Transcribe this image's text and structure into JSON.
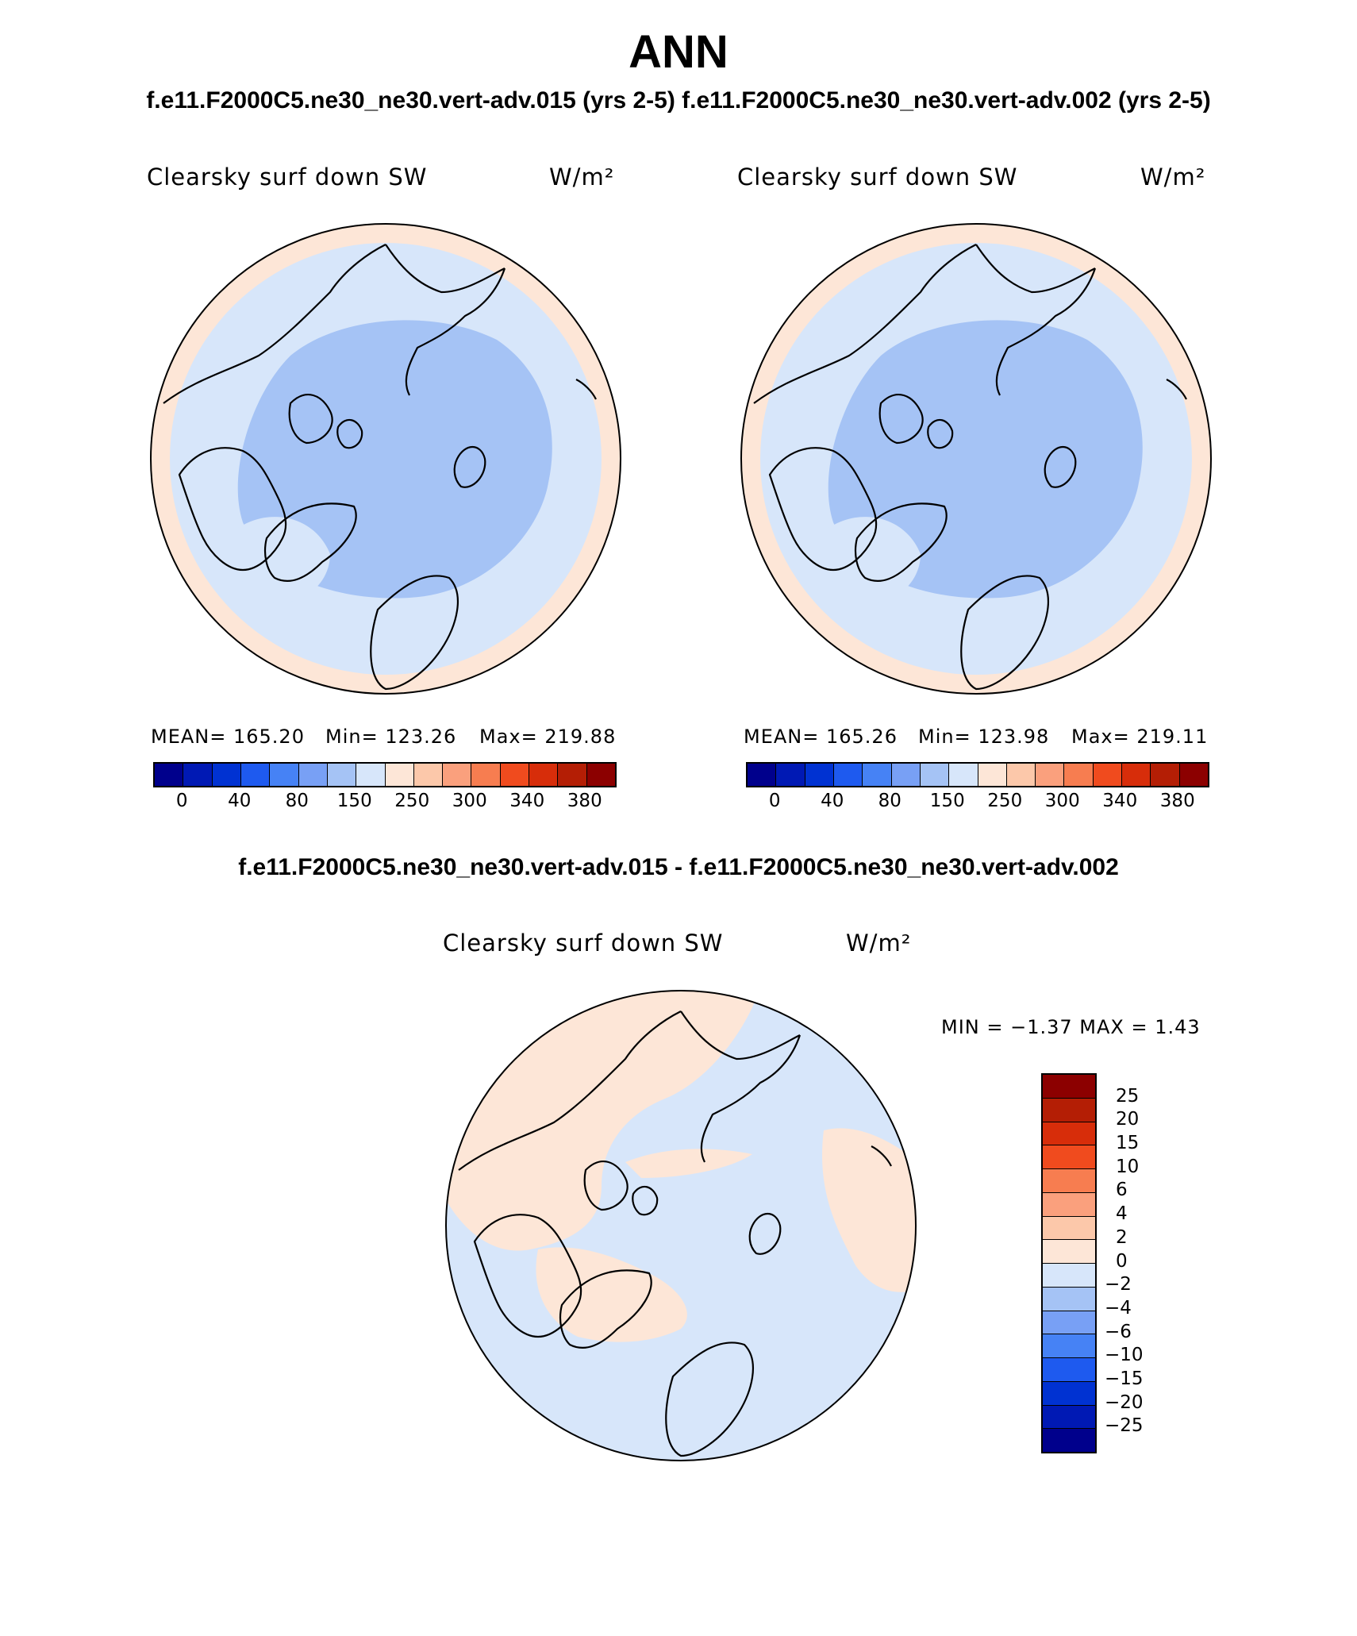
{
  "title": "ANN",
  "case_header": "f.e11.F2000C5.ne30_ne30.vert-adv.015 (yrs 2-5) f.e11.F2000C5.ne30_ne30.vert-adv.002 (yrs 2-5)",
  "diff_header": "f.e11.F2000C5.ne30_ne30.vert-adv.015 - f.e11.F2000C5.ne30_ne30.vert-adv.002",
  "panels": [
    {
      "variable": "Clearsky surf down SW",
      "units": "W/m²",
      "mean_text": "MEAN= 165.20",
      "min_text": "Min= 123.26",
      "max_text": "Max= 219.88"
    },
    {
      "variable": "Clearsky surf down SW",
      "units": "W/m²",
      "mean_text": "MEAN= 165.26",
      "min_text": "Min= 123.98",
      "max_text": "Max= 219.11"
    }
  ],
  "diff_panel": {
    "variable": "Clearsky surf down SW",
    "units": "W/m²",
    "minmax_text": "MIN =   −1.37 MAX =    1.43"
  },
  "colorbar": {
    "colors": [
      "#00008c",
      "#0019b4",
      "#0032d2",
      "#1e5aef",
      "#4682f5",
      "#78a0f5",
      "#a5c3f5",
      "#d7e6fa",
      "#fde6d7",
      "#fcc8aa",
      "#faa07d",
      "#f77d50",
      "#f04b1e",
      "#d72d0a",
      "#b41e05",
      "#8c0000"
    ],
    "labels": [
      "0",
      "40",
      "80",
      "150",
      "250",
      "300",
      "340",
      "380"
    ]
  },
  "diff_colorbar": {
    "colors": [
      "#8c0000",
      "#b41e05",
      "#d72d0a",
      "#f04b1e",
      "#f77d50",
      "#faa07d",
      "#fcc8aa",
      "#fde6d7",
      "#d7e6fa",
      "#a5c3f5",
      "#78a0f5",
      "#4682f5",
      "#1e5aef",
      "#0032d2",
      "#0019b4",
      "#00008c"
    ],
    "labels": [
      "25",
      "20",
      "15",
      "10",
      "6",
      "4",
      "2",
      "0",
      "−2",
      "−4",
      "−6",
      "−10",
      "−15",
      "−20",
      "−25"
    ]
  },
  "map_colors": {
    "outer": "#fde6d7",
    "mid": "#d7e6fa",
    "inner": "#a5c3f5"
  }
}
